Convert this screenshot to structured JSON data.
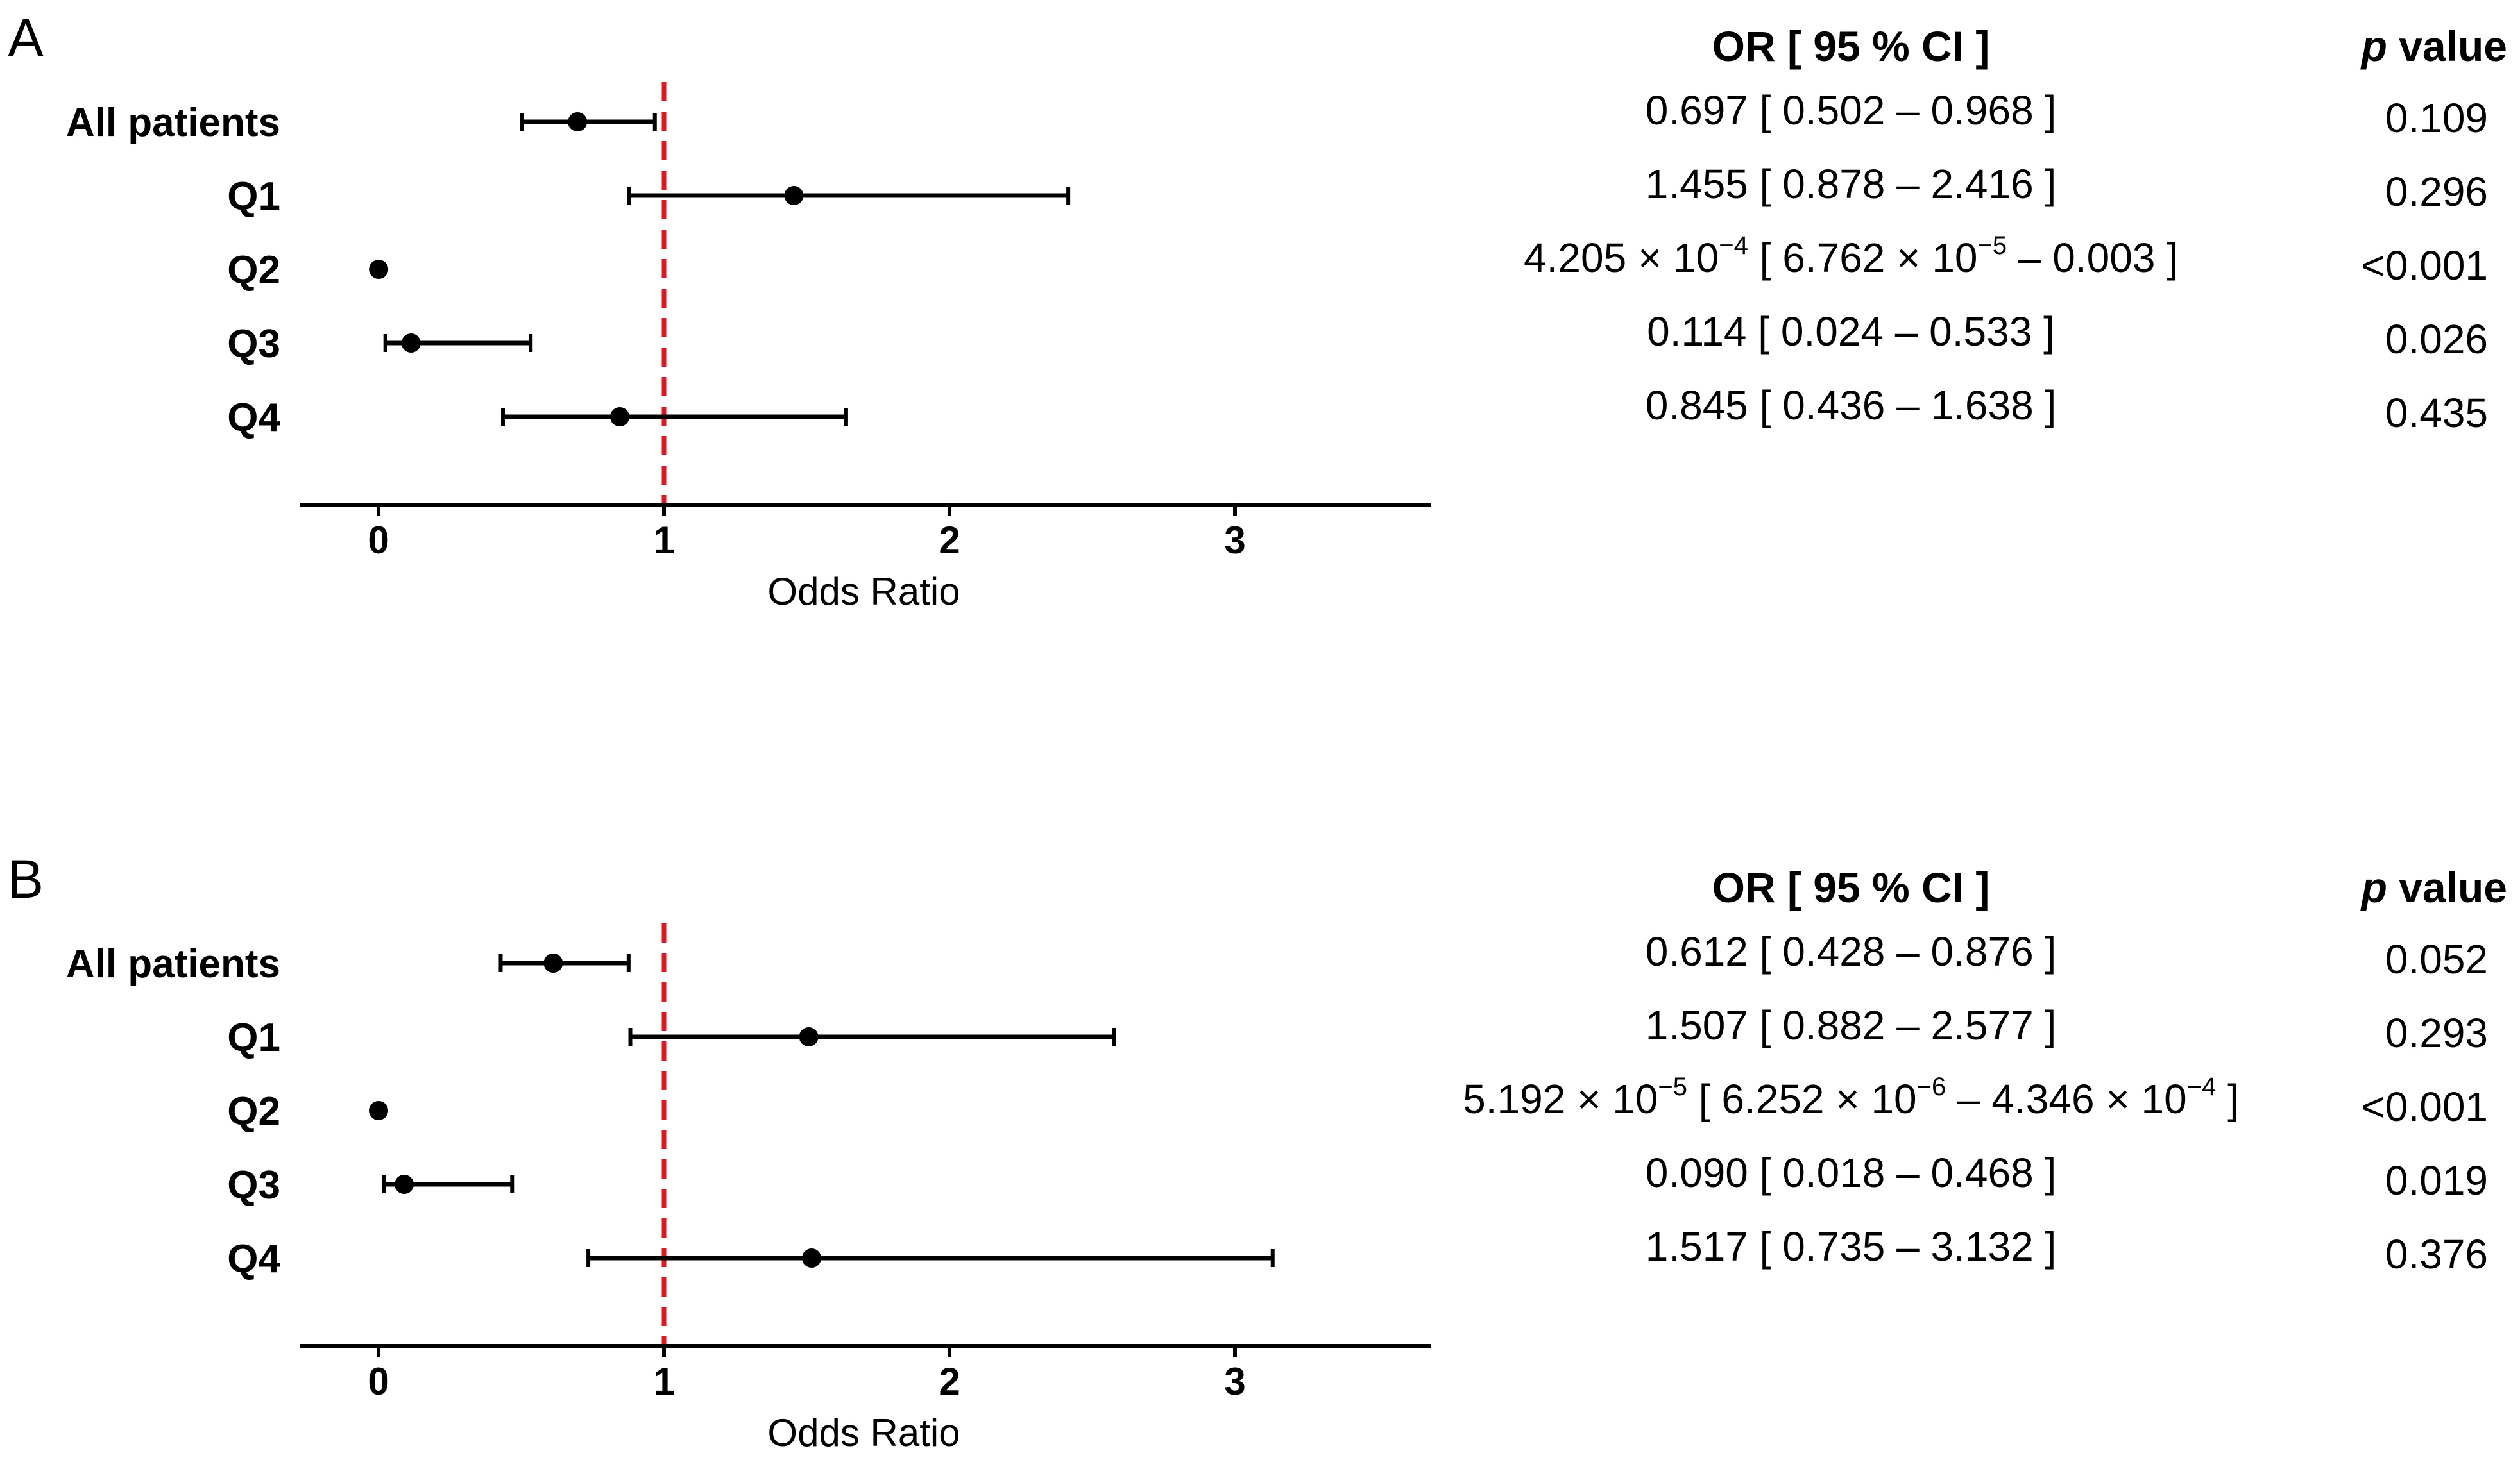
{
  "chart_data": [
    {
      "panel": "A",
      "type": "forest",
      "xlabel": "Odds Ratio",
      "xlim": [
        -0.28,
        3.7
      ],
      "xticks": [
        "0",
        "1",
        "2",
        "3"
      ],
      "reference_line": 1,
      "columns": {
        "or_header": "OR [ 95 %  CI  ]",
        "p_header_italic": "p",
        "p_header_rest": " value"
      },
      "rows": [
        {
          "label": "All patients",
          "or": 0.697,
          "lo": 0.502,
          "hi": 0.968,
          "or_text": [
            {
              "t": "0.697 [ 0.502 – 0.968 ]"
            }
          ],
          "p": "0.109"
        },
        {
          "label": "Q1",
          "or": 1.455,
          "lo": 0.878,
          "hi": 2.416,
          "or_text": [
            {
              "t": "1.455 [ 0.878 – 2.416 ]"
            }
          ],
          "p": "0.296"
        },
        {
          "label": "Q2",
          "or": 0.0004205,
          "lo": 6.762e-05,
          "hi": 0.003,
          "or_text": [
            {
              "t": "4.205 × 10"
            },
            {
              "t": "−4",
              "sup": true
            },
            {
              "t": " [  6.762 × 10"
            },
            {
              "t": "−5",
              "sup": true
            },
            {
              "t": " – 0.003 ]"
            }
          ],
          "p": "<0.001"
        },
        {
          "label": "Q3",
          "or": 0.114,
          "lo": 0.024,
          "hi": 0.533,
          "or_text": [
            {
              "t": "0.114 [ 0.024 – 0.533 ]"
            }
          ],
          "p": "0.026"
        },
        {
          "label": "Q4",
          "or": 0.845,
          "lo": 0.436,
          "hi": 1.638,
          "or_text": [
            {
              "t": "0.845 [ 0.436 – 1.638 ]"
            }
          ],
          "p": "0.435"
        }
      ]
    },
    {
      "panel": "B",
      "type": "forest",
      "xlabel": "Odds Ratio",
      "xlim": [
        -0.28,
        3.7
      ],
      "xticks": [
        "0",
        "1",
        "2",
        "3"
      ],
      "reference_line": 1,
      "columns": {
        "or_header": "OR [ 95 %  CI  ]",
        "p_header_italic": "p",
        "p_header_rest": " value"
      },
      "rows": [
        {
          "label": "All patients",
          "or": 0.612,
          "lo": 0.428,
          "hi": 0.876,
          "or_text": [
            {
              "t": "0.612 [ 0.428 – 0.876 ]"
            }
          ],
          "p": "0.052"
        },
        {
          "label": "Q1",
          "or": 1.507,
          "lo": 0.882,
          "hi": 2.577,
          "or_text": [
            {
              "t": "1.507 [ 0.882 – 2.577 ]"
            }
          ],
          "p": "0.293"
        },
        {
          "label": "Q2",
          "or": 5.192e-05,
          "lo": 6.252e-06,
          "hi": 0.0004346,
          "or_text": [
            {
              "t": "5.192 × 10"
            },
            {
              "t": "−5",
              "sup": true
            },
            {
              "t": " [  6.252 × 10"
            },
            {
              "t": "−6",
              "sup": true
            },
            {
              "t": " –  4.346 × 10"
            },
            {
              "t": "−4",
              "sup": true
            },
            {
              "t": " ]"
            }
          ],
          "p": "<0.001"
        },
        {
          "label": "Q3",
          "or": 0.09,
          "lo": 0.018,
          "hi": 0.468,
          "or_text": [
            {
              "t": "0.090 [ 0.018 – 0.468 ]"
            }
          ],
          "p": "0.019"
        },
        {
          "label": "Q4",
          "or": 1.517,
          "lo": 0.735,
          "hi": 3.132,
          "or_text": [
            {
              "t": "1.517 [ 0.735 – 3.132 ]"
            }
          ],
          "p": "0.376"
        }
      ]
    }
  ]
}
